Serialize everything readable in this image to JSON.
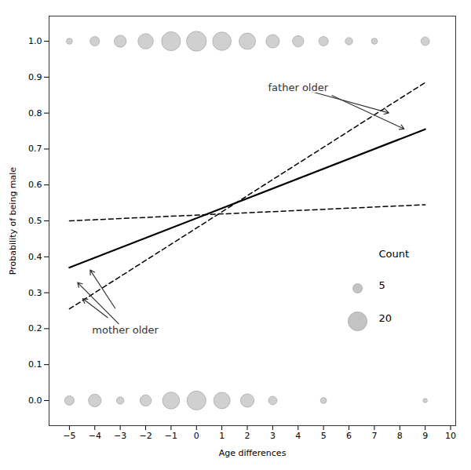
{
  "chart_data": {
    "type": "bubble",
    "xlabel": "Age differences",
    "ylabel": "Probability of being male",
    "xlim": [
      -5.8,
      10.2
    ],
    "ylim": [
      -0.07,
      1.07
    ],
    "xticks": [
      -5,
      -4,
      -3,
      -2,
      -1,
      0,
      1,
      2,
      3,
      4,
      5,
      6,
      7,
      8,
      9,
      10
    ],
    "yticks": [
      {
        "value": 0.0,
        "label": "0.0"
      },
      0.1,
      0.2,
      0.3,
      0.4,
      0.5,
      0.6,
      0.7,
      0.8,
      0.9,
      {
        "value": 1.0,
        "label": "1.0"
      }
    ],
    "grid": false,
    "series": [
      {
        "type": "bubble",
        "color": "#AAAAAA",
        "y": 1.0,
        "x": [
          -5,
          -4,
          -3,
          -2,
          -1,
          0,
          1,
          2,
          3,
          4,
          5,
          6,
          7,
          9
        ],
        "counts": [
          2,
          5,
          8,
          13,
          20,
          22,
          19,
          15,
          10,
          7,
          5,
          3,
          2,
          4
        ]
      },
      {
        "type": "bubble",
        "color": "#AAAAAA",
        "y": 0.0,
        "x": [
          -5,
          -4,
          -3,
          -2,
          -1,
          0,
          1,
          2,
          3,
          5,
          9
        ],
        "counts": [
          5,
          9,
          3,
          7,
          16,
          20,
          15,
          10,
          4,
          2,
          1
        ]
      },
      {
        "type": "line",
        "color": "#000000",
        "line_style": "solid",
        "x": [
          -5,
          9
        ],
        "y": [
          0.37,
          0.755
        ]
      },
      {
        "type": "line",
        "color": "#000000",
        "line_style": "dashed",
        "x": [
          -5,
          9
        ],
        "y": [
          0.255,
          0.885
        ]
      },
      {
        "type": "line",
        "color": "#000000",
        "line_style": "dashed",
        "x": [
          -5,
          9
        ],
        "y": [
          0.5,
          0.545
        ]
      }
    ],
    "size_legend": {
      "title": "Count",
      "values": [
        5,
        20
      ]
    },
    "annotations": [
      {
        "text": "father older",
        "x": 4.0,
        "y": 0.87,
        "color": "#333333",
        "arrows": [
          {
            "from": [
              4.0,
              0.87
            ],
            "to": [
              7.6,
              0.8
            ]
          },
          {
            "from": [
              5.0,
              0.86
            ],
            "to": [
              8.2,
              0.755
            ]
          }
        ]
      },
      {
        "text": "mother older",
        "x": -2.8,
        "y": 0.195,
        "color": "#333333",
        "arrows": [
          {
            "from": [
              -2.8,
              0.195
            ],
            "to": [
              -4.7,
              0.33
            ]
          },
          {
            "from": [
              -3.2,
              0.215
            ],
            "to": [
              -4.5,
              0.285
            ]
          },
          {
            "from": [
              -3.0,
              0.235
            ],
            "to": [
              -4.2,
              0.365
            ]
          }
        ]
      }
    ]
  }
}
